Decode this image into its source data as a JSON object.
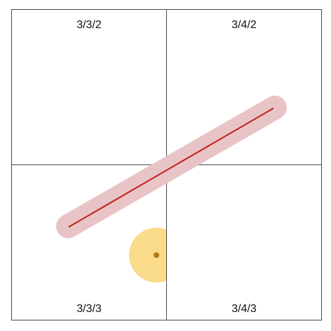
{
  "tiles": {
    "top_left": {
      "label": "3/3/2"
    },
    "top_right": {
      "label": "3/4/2"
    },
    "bottom_left": {
      "label": "3/3/3"
    },
    "bottom_right": {
      "label": "3/4/3"
    }
  },
  "colors": {
    "tile_border": "#4a4a4a",
    "route_line": "#c41e1e",
    "route_buffer": "#e8c4c6",
    "point_buffer": "#fadb8a",
    "point": "#b07a14"
  }
}
